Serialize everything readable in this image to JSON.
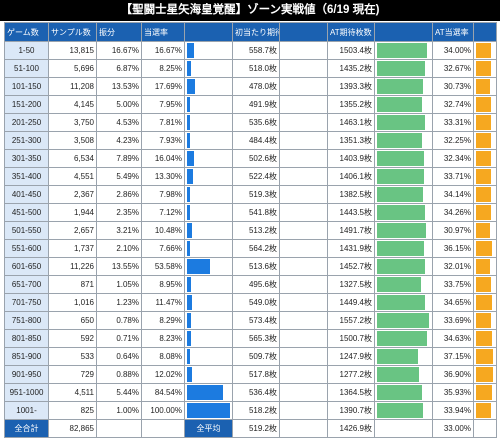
{
  "title": "【聖闘士星矢海皇覚醒】ゾーン実戦値（6/19 現在)",
  "headers": [
    "ゲーム数",
    "サンプル数",
    "振分",
    "当選率",
    "",
    "初当たり期待枚数",
    "",
    "AT期待枚数",
    "",
    "AT当選率",
    ""
  ],
  "colors": {
    "header": "#1b61b1",
    "range_bg": "#dbe8f7",
    "hit_bar": "#1c7be0",
    "exp_bar": "#69c483",
    "at_bar": "#f6a820"
  },
  "rows": [
    {
      "range": "1-50",
      "samples": "13,815",
      "dist": "16.67%",
      "rate": "16.67%",
      "rate_v": 16.67,
      "first": "558.7枚",
      "at_exp": "1503.4枚",
      "at_exp_v": 1503.4,
      "at_rate": "34.00%",
      "at_rate_v": 34.0
    },
    {
      "range": "51-100",
      "samples": "5,696",
      "dist": "6.87%",
      "rate": "8.25%",
      "rate_v": 8.25,
      "first": "518.0枚",
      "at_exp": "1435.2枚",
      "at_exp_v": 1435.2,
      "at_rate": "32.67%",
      "at_rate_v": 32.67
    },
    {
      "range": "101-150",
      "samples": "11,208",
      "dist": "13.53%",
      "rate": "17.69%",
      "rate_v": 17.69,
      "first": "478.0枚",
      "at_exp": "1393.3枚",
      "at_exp_v": 1393.3,
      "at_rate": "30.73%",
      "at_rate_v": 30.73
    },
    {
      "range": "151-200",
      "samples": "4,145",
      "dist": "5.00%",
      "rate": "7.95%",
      "rate_v": 7.95,
      "first": "491.9枚",
      "at_exp": "1355.2枚",
      "at_exp_v": 1355.2,
      "at_rate": "32.74%",
      "at_rate_v": 32.74
    },
    {
      "range": "201-250",
      "samples": "3,750",
      "dist": "4.53%",
      "rate": "7.81%",
      "rate_v": 7.81,
      "first": "535.6枚",
      "at_exp": "1463.1枚",
      "at_exp_v": 1463.1,
      "at_rate": "33.31%",
      "at_rate_v": 33.31
    },
    {
      "range": "251-300",
      "samples": "3,508",
      "dist": "4.23%",
      "rate": "7.93%",
      "rate_v": 7.93,
      "first": "484.4枚",
      "at_exp": "1351.3枚",
      "at_exp_v": 1351.3,
      "at_rate": "32.25%",
      "at_rate_v": 32.25
    },
    {
      "range": "301-350",
      "samples": "6,534",
      "dist": "7.89%",
      "rate": "16.04%",
      "rate_v": 16.04,
      "first": "502.6枚",
      "at_exp": "1403.9枚",
      "at_exp_v": 1403.9,
      "at_rate": "32.34%",
      "at_rate_v": 32.34
    },
    {
      "range": "351-400",
      "samples": "4,551",
      "dist": "5.49%",
      "rate": "13.30%",
      "rate_v": 13.3,
      "first": "522.4枚",
      "at_exp": "1406.1枚",
      "at_exp_v": 1406.1,
      "at_rate": "33.71%",
      "at_rate_v": 33.71
    },
    {
      "range": "401-450",
      "samples": "2,367",
      "dist": "2.86%",
      "rate": "7.98%",
      "rate_v": 7.98,
      "first": "519.3枚",
      "at_exp": "1382.5枚",
      "at_exp_v": 1382.5,
      "at_rate": "34.14%",
      "at_rate_v": 34.14
    },
    {
      "range": "451-500",
      "samples": "1,944",
      "dist": "2.35%",
      "rate": "7.12%",
      "rate_v": 7.12,
      "first": "541.8枚",
      "at_exp": "1443.5枚",
      "at_exp_v": 1443.5,
      "at_rate": "34.26%",
      "at_rate_v": 34.26
    },
    {
      "range": "501-550",
      "samples": "2,657",
      "dist": "3.21%",
      "rate": "10.48%",
      "rate_v": 10.48,
      "first": "513.2枚",
      "at_exp": "1491.7枚",
      "at_exp_v": 1491.7,
      "at_rate": "30.97%",
      "at_rate_v": 30.97
    },
    {
      "range": "551-600",
      "samples": "1,737",
      "dist": "2.10%",
      "rate": "7.66%",
      "rate_v": 7.66,
      "first": "564.2枚",
      "at_exp": "1431.9枚",
      "at_exp_v": 1431.9,
      "at_rate": "36.15%",
      "at_rate_v": 36.15
    },
    {
      "range": "601-650",
      "samples": "11,226",
      "dist": "13.55%",
      "rate": "53.58%",
      "rate_v": 53.58,
      "first": "513.6枚",
      "at_exp": "1452.7枚",
      "at_exp_v": 1452.7,
      "at_rate": "32.01%",
      "at_rate_v": 32.01
    },
    {
      "range": "651-700",
      "samples": "871",
      "dist": "1.05%",
      "rate": "8.95%",
      "rate_v": 8.95,
      "first": "495.6枚",
      "at_exp": "1327.5枚",
      "at_exp_v": 1327.5,
      "at_rate": "33.75%",
      "at_rate_v": 33.75
    },
    {
      "range": "701-750",
      "samples": "1,016",
      "dist": "1.23%",
      "rate": "11.47%",
      "rate_v": 11.47,
      "first": "549.0枚",
      "at_exp": "1449.4枚",
      "at_exp_v": 1449.4,
      "at_rate": "34.65%",
      "at_rate_v": 34.65
    },
    {
      "range": "751-800",
      "samples": "650",
      "dist": "0.78%",
      "rate": "8.29%",
      "rate_v": 8.29,
      "first": "573.4枚",
      "at_exp": "1557.2枚",
      "at_exp_v": 1557.2,
      "at_rate": "33.69%",
      "at_rate_v": 33.69
    },
    {
      "range": "801-850",
      "samples": "592",
      "dist": "0.71%",
      "rate": "8.23%",
      "rate_v": 8.23,
      "first": "565.3枚",
      "at_exp": "1500.7枚",
      "at_exp_v": 1500.7,
      "at_rate": "34.63%",
      "at_rate_v": 34.63
    },
    {
      "range": "851-900",
      "samples": "533",
      "dist": "0.64%",
      "rate": "8.08%",
      "rate_v": 8.08,
      "first": "509.7枚",
      "at_exp": "1247.9枚",
      "at_exp_v": 1247.9,
      "at_rate": "37.15%",
      "at_rate_v": 37.15
    },
    {
      "range": "901-950",
      "samples": "729",
      "dist": "0.88%",
      "rate": "12.02%",
      "rate_v": 12.02,
      "first": "517.8枚",
      "at_exp": "1277.2枚",
      "at_exp_v": 1277.2,
      "at_rate": "36.90%",
      "at_rate_v": 36.9
    },
    {
      "range": "951-1000",
      "samples": "4,511",
      "dist": "5.44%",
      "rate": "84.54%",
      "rate_v": 84.54,
      "first": "536.4枚",
      "at_exp": "1364.5枚",
      "at_exp_v": 1364.5,
      "at_rate": "35.93%",
      "at_rate_v": 35.93
    },
    {
      "range": "1001-",
      "samples": "825",
      "dist": "1.00%",
      "rate": "100.00%",
      "rate_v": 100.0,
      "first": "518.2枚",
      "at_exp": "1390.7枚",
      "at_exp_v": 1390.7,
      "at_rate": "33.94%",
      "at_rate_v": 33.94
    }
  ],
  "footer": {
    "total_label": "全合計",
    "total_samples": "82,865",
    "avg_label": "全平均",
    "avg_first": "519.2枚",
    "avg_at_exp": "1426.9枚",
    "avg_at_rate": "33.00%"
  },
  "bar_max": {
    "rate": 100,
    "at_exp": 1600,
    "at_rate": 40
  }
}
